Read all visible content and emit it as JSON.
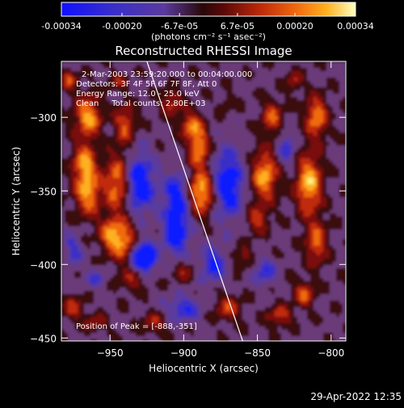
{
  "colorbar": {
    "tick_labels": [
      "-0.00034",
      "-0.00020",
      "-6.7e-05",
      "6.7e-05",
      "0.00020",
      "0.00034"
    ],
    "tick_values": [
      -0.00034,
      -0.0002,
      -6.7e-05,
      6.7e-05,
      0.0002,
      0.00034
    ],
    "range": [
      -0.00034,
      0.00034
    ],
    "units_label": "(photons cm⁻² s⁻¹ asec⁻²)"
  },
  "annotations": {
    "time_range": "2-Mar-2003 23:59:20.000 to 00:04:00.000",
    "detectors": "Detectors: 3F 4F 5F 6F 7F 8F, Att 0",
    "energy_range": "Energy Range: 12.0 - 25.0 keV",
    "clean_counts": "Clean     Total counts: 2.80E+03",
    "peak_position": "Position of Peak = [-888,-351]"
  },
  "footer": {
    "timestamp": "29-Apr-2022 12:35"
  },
  "chart_data": {
    "type": "heatmap",
    "title": "Reconstructed RHESSI Image",
    "xlabel": "Heliocentric X (arcsec)",
    "ylabel": "Heliocentric Y (arcsec)",
    "xlim": [
      -983,
      -790
    ],
    "ylim": [
      -452,
      -262
    ],
    "x_ticks": [
      -950,
      -900,
      -850,
      -800
    ],
    "y_ticks": [
      -450,
      -400,
      -350,
      -300
    ],
    "x_tick_labels": [
      "−950",
      "−900",
      "−850",
      "−800"
    ],
    "y_tick_labels": [
      "−450",
      "−400",
      "−350",
      "−300"
    ],
    "limb_line": {
      "x": [
        -925,
        -860
      ],
      "y": [
        -262,
        -452
      ]
    },
    "colormap": [
      "#0a1aff",
      "#3a2fc8",
      "#5a3a9e",
      "#6a3a78",
      "#3a0a10",
      "#7a0a0a",
      "#c02a08",
      "#f06a10",
      "#ffb020",
      "#fff080",
      "#ffffff"
    ]
  }
}
